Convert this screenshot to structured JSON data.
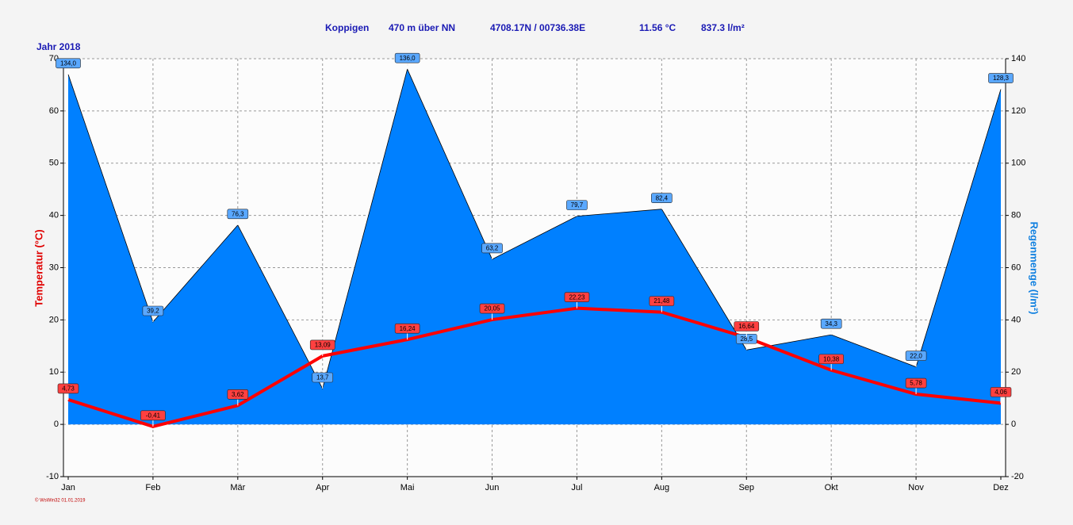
{
  "chart_data": {
    "type": "line",
    "header": {
      "station": "Koppigen",
      "altitude": "470 m über NN",
      "coordinates": "4708.17N / 00736.38E",
      "mean_temperature": "11.56 °C",
      "total_rain": "837.3 l/m²"
    },
    "year_label": "Jahr  2018",
    "footer": "© WsWin32  01.01.2019",
    "y_label": "Temperatur  (°C)",
    "y2_label": "Regenmenge  (l/m²)",
    "categories": [
      "Jan",
      "Feb",
      "Mär",
      "Apr",
      "Mai",
      "Jun",
      "Jul",
      "Aug",
      "Sep",
      "Okt",
      "Nov",
      "Dez"
    ],
    "ylim": [
      -10,
      70
    ],
    "yticks": [
      -10,
      0,
      10,
      20,
      30,
      40,
      50,
      60,
      70
    ],
    "y2lim": [
      -20,
      140
    ],
    "y2ticks": [
      -20,
      0,
      20,
      40,
      60,
      80,
      100,
      120,
      140
    ],
    "grid": true,
    "series": [
      {
        "name": "Temperatur",
        "kind": "line",
        "color": "#ff0000",
        "axis": "y",
        "values": [
          4.73,
          -0.41,
          3.62,
          13.09,
          16.24,
          20.05,
          22.23,
          21.48,
          16.64,
          10.38,
          5.78,
          4.06
        ],
        "value_labels": [
          "4,73",
          "-0,41",
          "3,62",
          "13,09",
          "16,24",
          "20,05",
          "22,23",
          "21,48",
          "16,64",
          "10,38",
          "5,78",
          "4,06"
        ]
      },
      {
        "name": "Regenmenge",
        "kind": "area",
        "color": "#0080ff",
        "axis": "y2",
        "values": [
          134.0,
          39.2,
          76.3,
          13.7,
          136.0,
          63.2,
          79.7,
          82.4,
          28.5,
          34.3,
          22.0,
          128.3
        ],
        "value_labels": [
          "134,0",
          "39,2",
          "76,3",
          "13,7",
          "136,0",
          "63,2",
          "79,7",
          "82,4",
          "28,5",
          "34,3",
          "22,0",
          "128,3"
        ]
      }
    ]
  }
}
